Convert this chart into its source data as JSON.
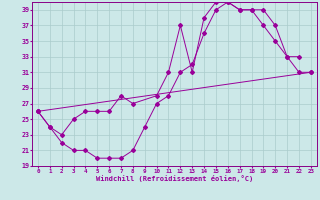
{
  "xlabel": "Windchill (Refroidissement éolien,°C)",
  "bg_color": "#cce8e8",
  "line_color": "#990099",
  "grid_color": "#aacccc",
  "spine_color": "#880088",
  "xlim": [
    -0.5,
    23.5
  ],
  "ylim": [
    19,
    40
  ],
  "xticks": [
    0,
    1,
    2,
    3,
    4,
    5,
    6,
    7,
    8,
    9,
    10,
    11,
    12,
    13,
    14,
    15,
    16,
    17,
    18,
    19,
    20,
    21,
    22,
    23
  ],
  "yticks": [
    19,
    21,
    23,
    25,
    27,
    29,
    31,
    33,
    35,
    37,
    39
  ],
  "series1_x": [
    0,
    1,
    2,
    3,
    4,
    5,
    6,
    7,
    8,
    9,
    10,
    11,
    12,
    13,
    14,
    15,
    16,
    17,
    18,
    19,
    20,
    21,
    22,
    23
  ],
  "series1_y": [
    26,
    24,
    22,
    21,
    21,
    20,
    20,
    20,
    21,
    24,
    27,
    28,
    31,
    32,
    36,
    39,
    40,
    39,
    39,
    39,
    37,
    33,
    31,
    31
  ],
  "series2_x": [
    0,
    1,
    2,
    3,
    4,
    5,
    6,
    7,
    8,
    10,
    11,
    12,
    13,
    14,
    15,
    16,
    17,
    18,
    19,
    20,
    21,
    22
  ],
  "series2_y": [
    26,
    24,
    23,
    25,
    26,
    26,
    26,
    28,
    27,
    28,
    31,
    37,
    31,
    38,
    40,
    40,
    39,
    39,
    37,
    35,
    33,
    33
  ],
  "series3_x": [
    0,
    23
  ],
  "series3_y": [
    26,
    31
  ]
}
